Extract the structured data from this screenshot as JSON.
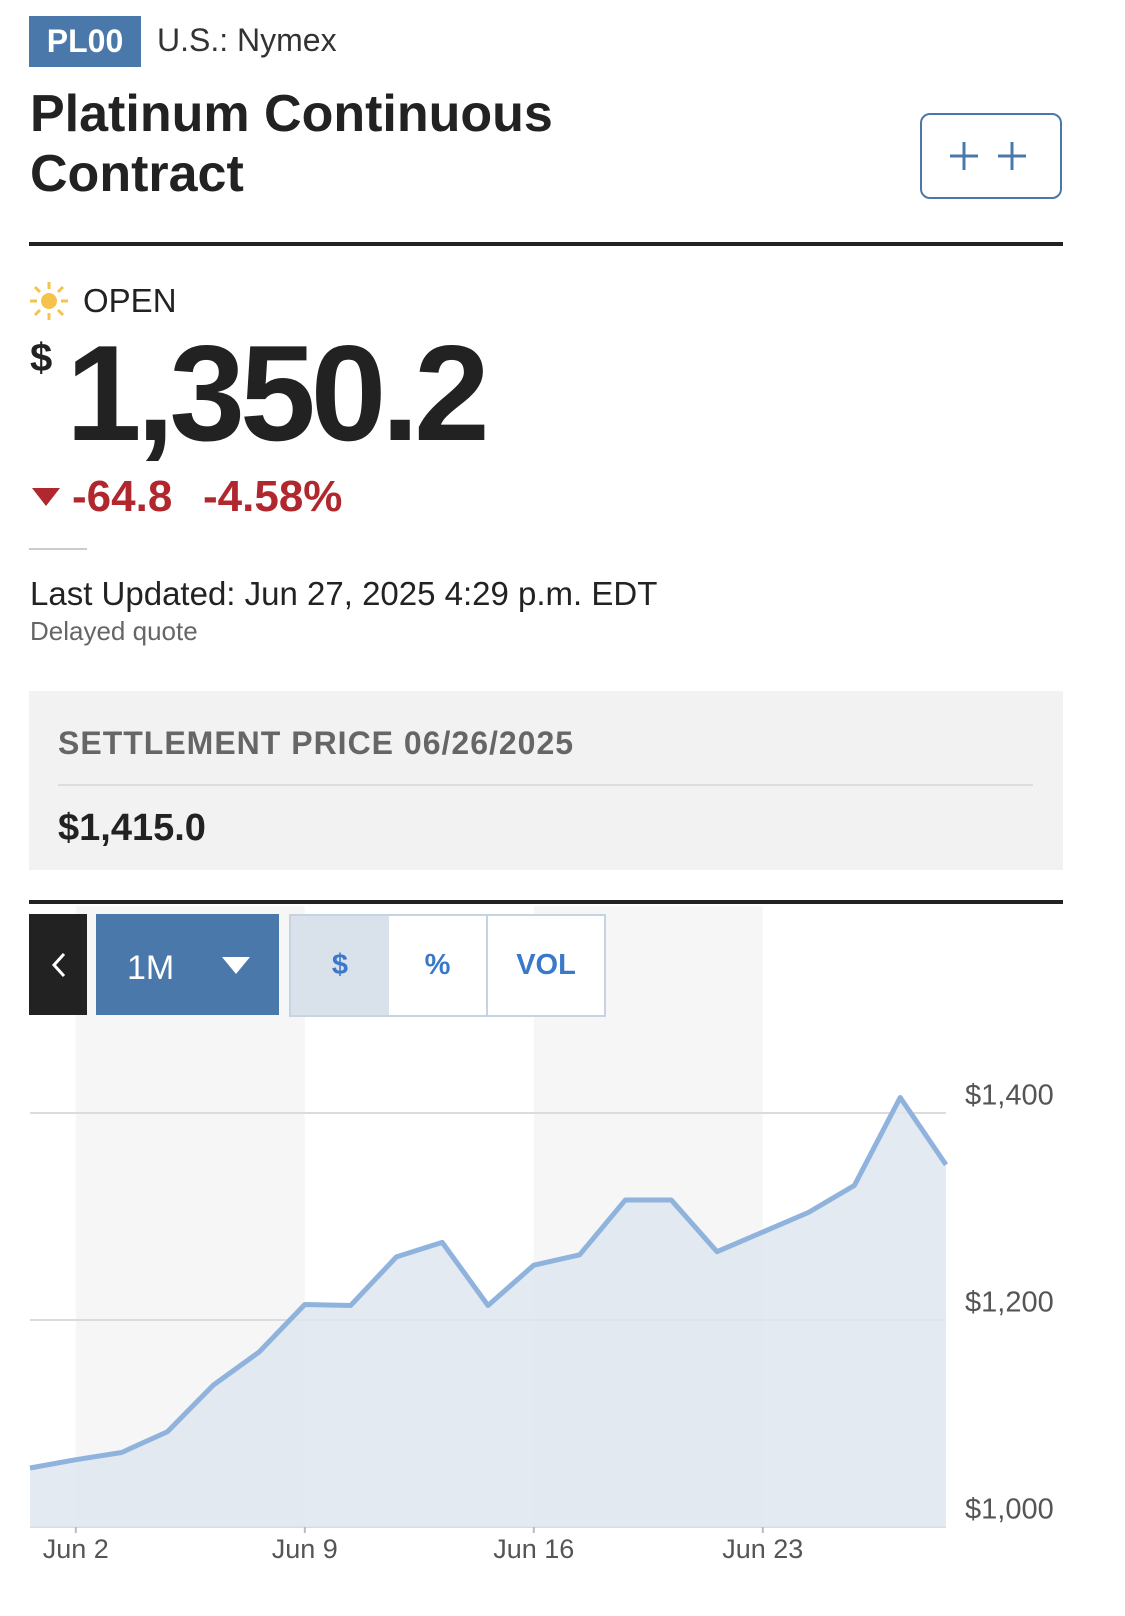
{
  "header": {
    "ticker": "PL00",
    "exchange": "U.S.: Nymex",
    "title": "Platinum Continuous Contract"
  },
  "quote": {
    "status": "OPEN",
    "currency": "$",
    "price": "1,350.2",
    "change": "-64.8",
    "change_percent": "-4.58%",
    "last_updated": "Last Updated: Jun 27, 2025 4:29 p.m. EDT",
    "delay_note": "Delayed quote"
  },
  "settlement": {
    "label": "SETTLEMENT PRICE 06/26/2025",
    "value": "$1,415.0"
  },
  "chart_controls": {
    "range": "1M",
    "modes": [
      "$",
      "%",
      "VOL"
    ]
  },
  "chart_data": {
    "type": "area",
    "categories": [
      null,
      "Jun 2",
      null,
      null,
      null,
      null,
      "Jun 9",
      null,
      null,
      null,
      null,
      "Jun 16",
      null,
      null,
      null,
      null,
      "Jun 23",
      null,
      null,
      null,
      null
    ],
    "values": [
      1057,
      1065,
      1072,
      1092,
      1137,
      1169,
      1215,
      1214,
      1261,
      1275,
      1214,
      1253,
      1263,
      1316,
      1316,
      1266,
      1285,
      1304,
      1330,
      1415,
      1350
    ],
    "color": "#8fb3dd",
    "fill_color": "#dfe6ee",
    "ylim": [
      1000,
      1480
    ],
    "yticks": [
      {
        "value": 1000,
        "label": "$1,000"
      },
      {
        "value": 1200,
        "label": "$1,200"
      },
      {
        "value": 1400,
        "label": "$1,400"
      }
    ],
    "grid": true
  }
}
